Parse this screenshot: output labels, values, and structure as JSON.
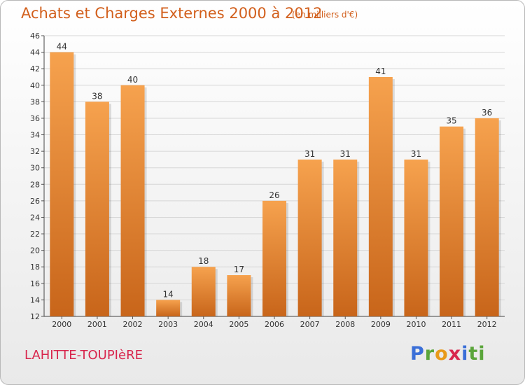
{
  "header": {
    "title": "Achats et Charges Externes 2000 à 2012",
    "unit": "(en milliers d'€)"
  },
  "footer": {
    "location": "LAHITTE-TOUPIèRE",
    "brand": [
      "P",
      "r",
      "o",
      "x",
      "i",
      "ti"
    ]
  },
  "colors": {
    "bar_light": "#f6a24e",
    "bar_dark": "#c8651a",
    "title": "#d25f1c",
    "location": "#d8264d",
    "grid": "#d6d6d6"
  },
  "chart_data": {
    "type": "bar",
    "title": "Achats et Charges Externes 2000 à 2012",
    "xlabel": "",
    "ylabel": "",
    "categories": [
      "2000",
      "2001",
      "2002",
      "2003",
      "2004",
      "2005",
      "2006",
      "2007",
      "2008",
      "2009",
      "2010",
      "2011",
      "2012"
    ],
    "values": [
      44,
      38,
      40,
      14,
      18,
      17,
      26,
      31,
      31,
      41,
      31,
      35,
      36
    ],
    "ylim": [
      12,
      46
    ],
    "yticks": [
      12,
      14,
      16,
      18,
      20,
      22,
      24,
      26,
      28,
      30,
      32,
      34,
      36,
      38,
      40,
      42,
      44,
      46
    ],
    "grid": true,
    "data_labels": true
  }
}
